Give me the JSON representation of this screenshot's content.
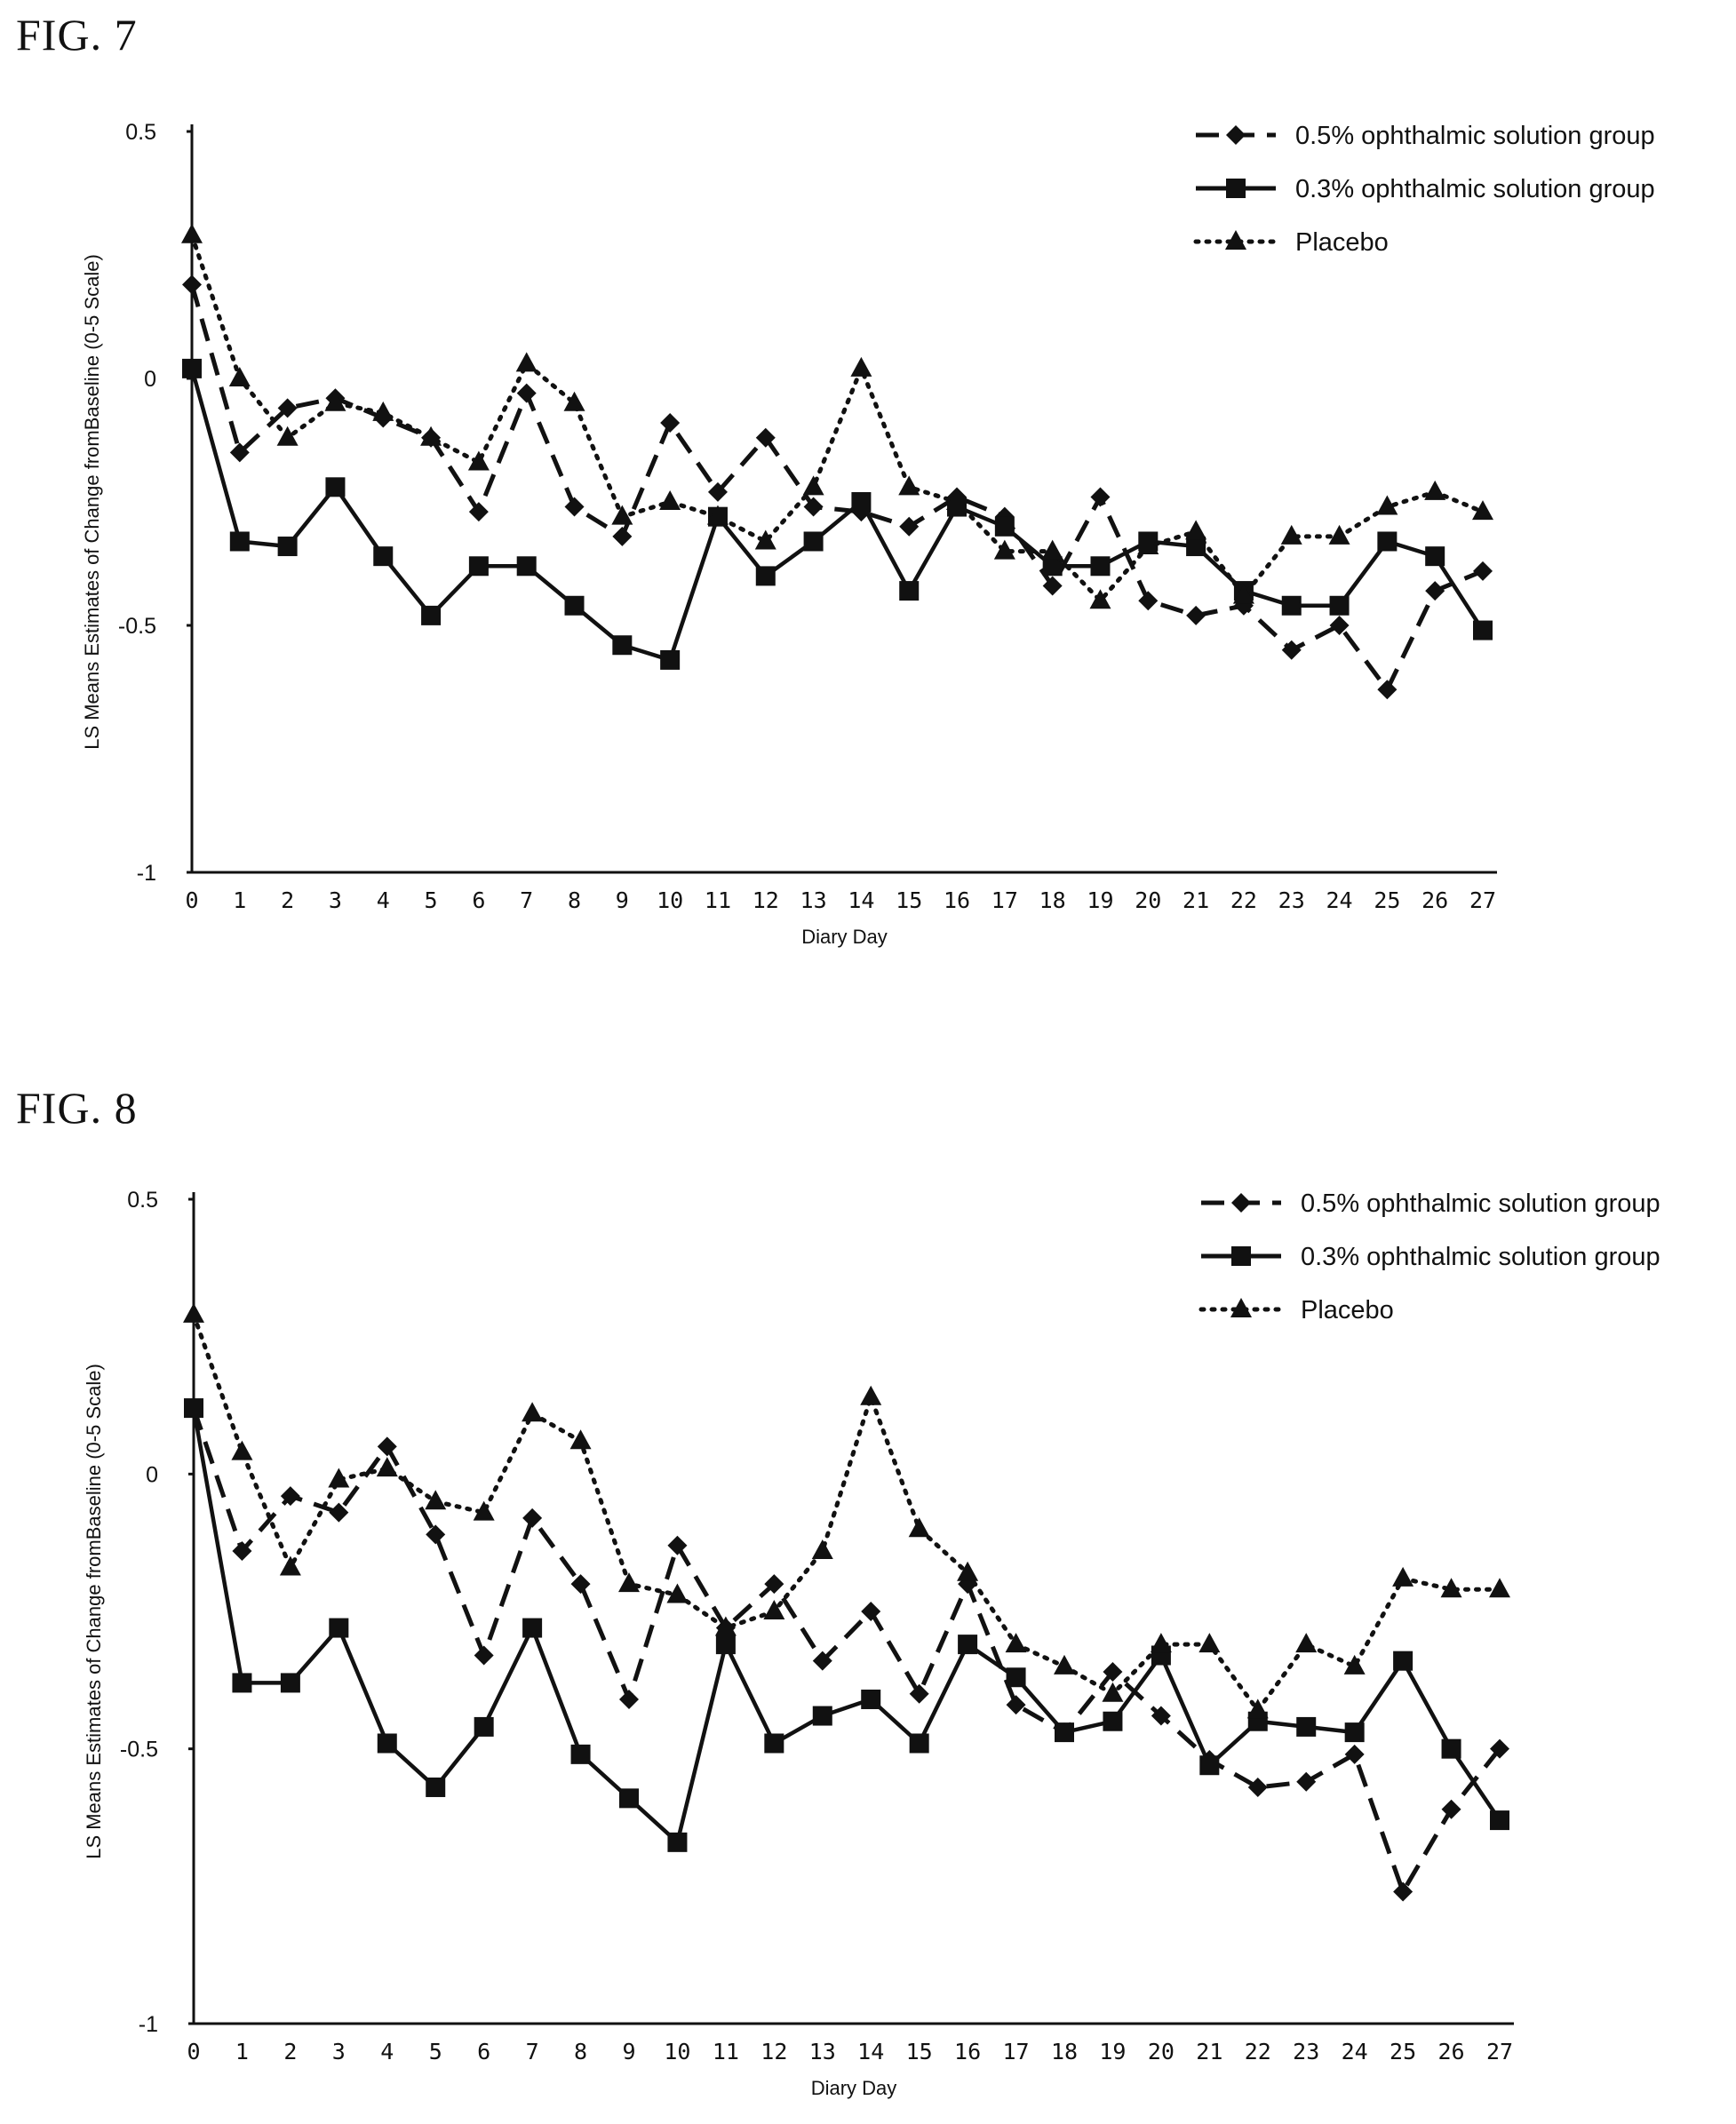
{
  "figures": [
    {
      "title": "FIG. 7"
    },
    {
      "title": "FIG. 8"
    }
  ],
  "chart_data": [
    {
      "type": "line",
      "title": "",
      "xlabel": "Diary Day",
      "ylabel": "LS Means Estimates of Change fromBaseline (0-5 Scale)",
      "xlim": [
        0,
        27
      ],
      "ylim": [
        -1,
        0.5
      ],
      "yticks": [
        "0.5",
        "0",
        "-0.5",
        "-1"
      ],
      "ytick_values": [
        0.5,
        0,
        -0.5,
        -1
      ],
      "x": [
        0,
        1,
        2,
        3,
        4,
        5,
        6,
        7,
        8,
        9,
        10,
        11,
        12,
        13,
        14,
        15,
        16,
        17,
        18,
        19,
        20,
        21,
        22,
        23,
        24,
        25,
        26,
        27
      ],
      "legend_position": "top-right",
      "grid": false,
      "series": [
        {
          "name": "0.5% ophthalmic solution group",
          "style": "dashed",
          "marker": "diamond",
          "color": "#111111",
          "values": [
            0.19,
            -0.15,
            -0.06,
            -0.04,
            -0.08,
            -0.12,
            -0.27,
            -0.03,
            -0.26,
            -0.32,
            -0.09,
            -0.23,
            -0.12,
            -0.26,
            -0.27,
            -0.3,
            -0.24,
            -0.28,
            -0.42,
            -0.24,
            -0.45,
            -0.48,
            -0.46,
            -0.55,
            -0.5,
            -0.63,
            -0.43,
            -0.39
          ]
        },
        {
          "name": "0.3% ophthalmic solution group",
          "style": "solid",
          "marker": "square",
          "color": "#111111",
          "values": [
            0.02,
            -0.33,
            -0.34,
            -0.22,
            -0.36,
            -0.48,
            -0.38,
            -0.38,
            -0.46,
            -0.54,
            -0.57,
            -0.28,
            -0.4,
            -0.33,
            -0.25,
            -0.43,
            -0.26,
            -0.3,
            -0.38,
            -0.38,
            -0.33,
            -0.34,
            -0.43,
            -0.46,
            -0.46,
            -0.33,
            -0.36,
            -0.51
          ]
        },
        {
          "name": "Placebo",
          "style": "dotted",
          "marker": "triangle",
          "color": "#111111",
          "values": [
            0.29,
            0.0,
            -0.12,
            -0.05,
            -0.07,
            -0.12,
            -0.17,
            0.03,
            -0.05,
            -0.28,
            -0.25,
            -0.28,
            -0.33,
            -0.22,
            0.02,
            -0.22,
            -0.25,
            -0.35,
            -0.35,
            -0.45,
            -0.34,
            -0.31,
            -0.44,
            -0.32,
            -0.32,
            -0.26,
            -0.23,
            -0.27
          ]
        }
      ]
    },
    {
      "type": "line",
      "title": "",
      "xlabel": "Diary Day",
      "ylabel": "LS Means Estimates of Change fromBaseline (0-5 Scale)",
      "xlim": [
        0,
        27
      ],
      "ylim": [
        -1,
        0.5
      ],
      "yticks": [
        "0.5",
        "0",
        "-0.5",
        "-1"
      ],
      "ytick_values": [
        0.5,
        0,
        -0.5,
        -1
      ],
      "x": [
        0,
        1,
        2,
        3,
        4,
        5,
        6,
        7,
        8,
        9,
        10,
        11,
        12,
        13,
        14,
        15,
        16,
        17,
        18,
        19,
        20,
        21,
        22,
        23,
        24,
        25,
        26,
        27
      ],
      "legend_position": "top-right",
      "grid": false,
      "series": [
        {
          "name": "0.5% ophthalmic solution group",
          "style": "dashed",
          "marker": "diamond",
          "color": "#111111",
          "values": [
            0.12,
            -0.14,
            -0.04,
            -0.07,
            0.05,
            -0.11,
            -0.33,
            -0.08,
            -0.2,
            -0.41,
            -0.13,
            -0.28,
            -0.2,
            -0.34,
            -0.25,
            -0.4,
            -0.2,
            -0.42,
            -0.47,
            -0.36,
            -0.44,
            -0.52,
            -0.57,
            -0.56,
            -0.51,
            -0.76,
            -0.61,
            -0.5
          ]
        },
        {
          "name": "0.3% ophthalmic solution group",
          "style": "solid",
          "marker": "square",
          "color": "#111111",
          "values": [
            0.12,
            -0.38,
            -0.38,
            -0.28,
            -0.49,
            -0.57,
            -0.46,
            -0.28,
            -0.51,
            -0.59,
            -0.67,
            -0.31,
            -0.49,
            -0.44,
            -0.41,
            -0.49,
            -0.31,
            -0.37,
            -0.47,
            -0.45,
            -0.33,
            -0.53,
            -0.45,
            -0.46,
            -0.47,
            -0.34,
            -0.5,
            -0.63
          ]
        },
        {
          "name": "Placebo",
          "style": "dotted",
          "marker": "triangle",
          "color": "#111111",
          "values": [
            0.29,
            0.04,
            -0.17,
            -0.01,
            0.01,
            -0.05,
            -0.07,
            0.11,
            0.06,
            -0.2,
            -0.22,
            -0.28,
            -0.25,
            -0.14,
            0.14,
            -0.1,
            -0.18,
            -0.31,
            -0.35,
            -0.4,
            -0.31,
            -0.31,
            -0.43,
            -0.31,
            -0.35,
            -0.19,
            -0.21,
            -0.21
          ]
        }
      ]
    }
  ]
}
